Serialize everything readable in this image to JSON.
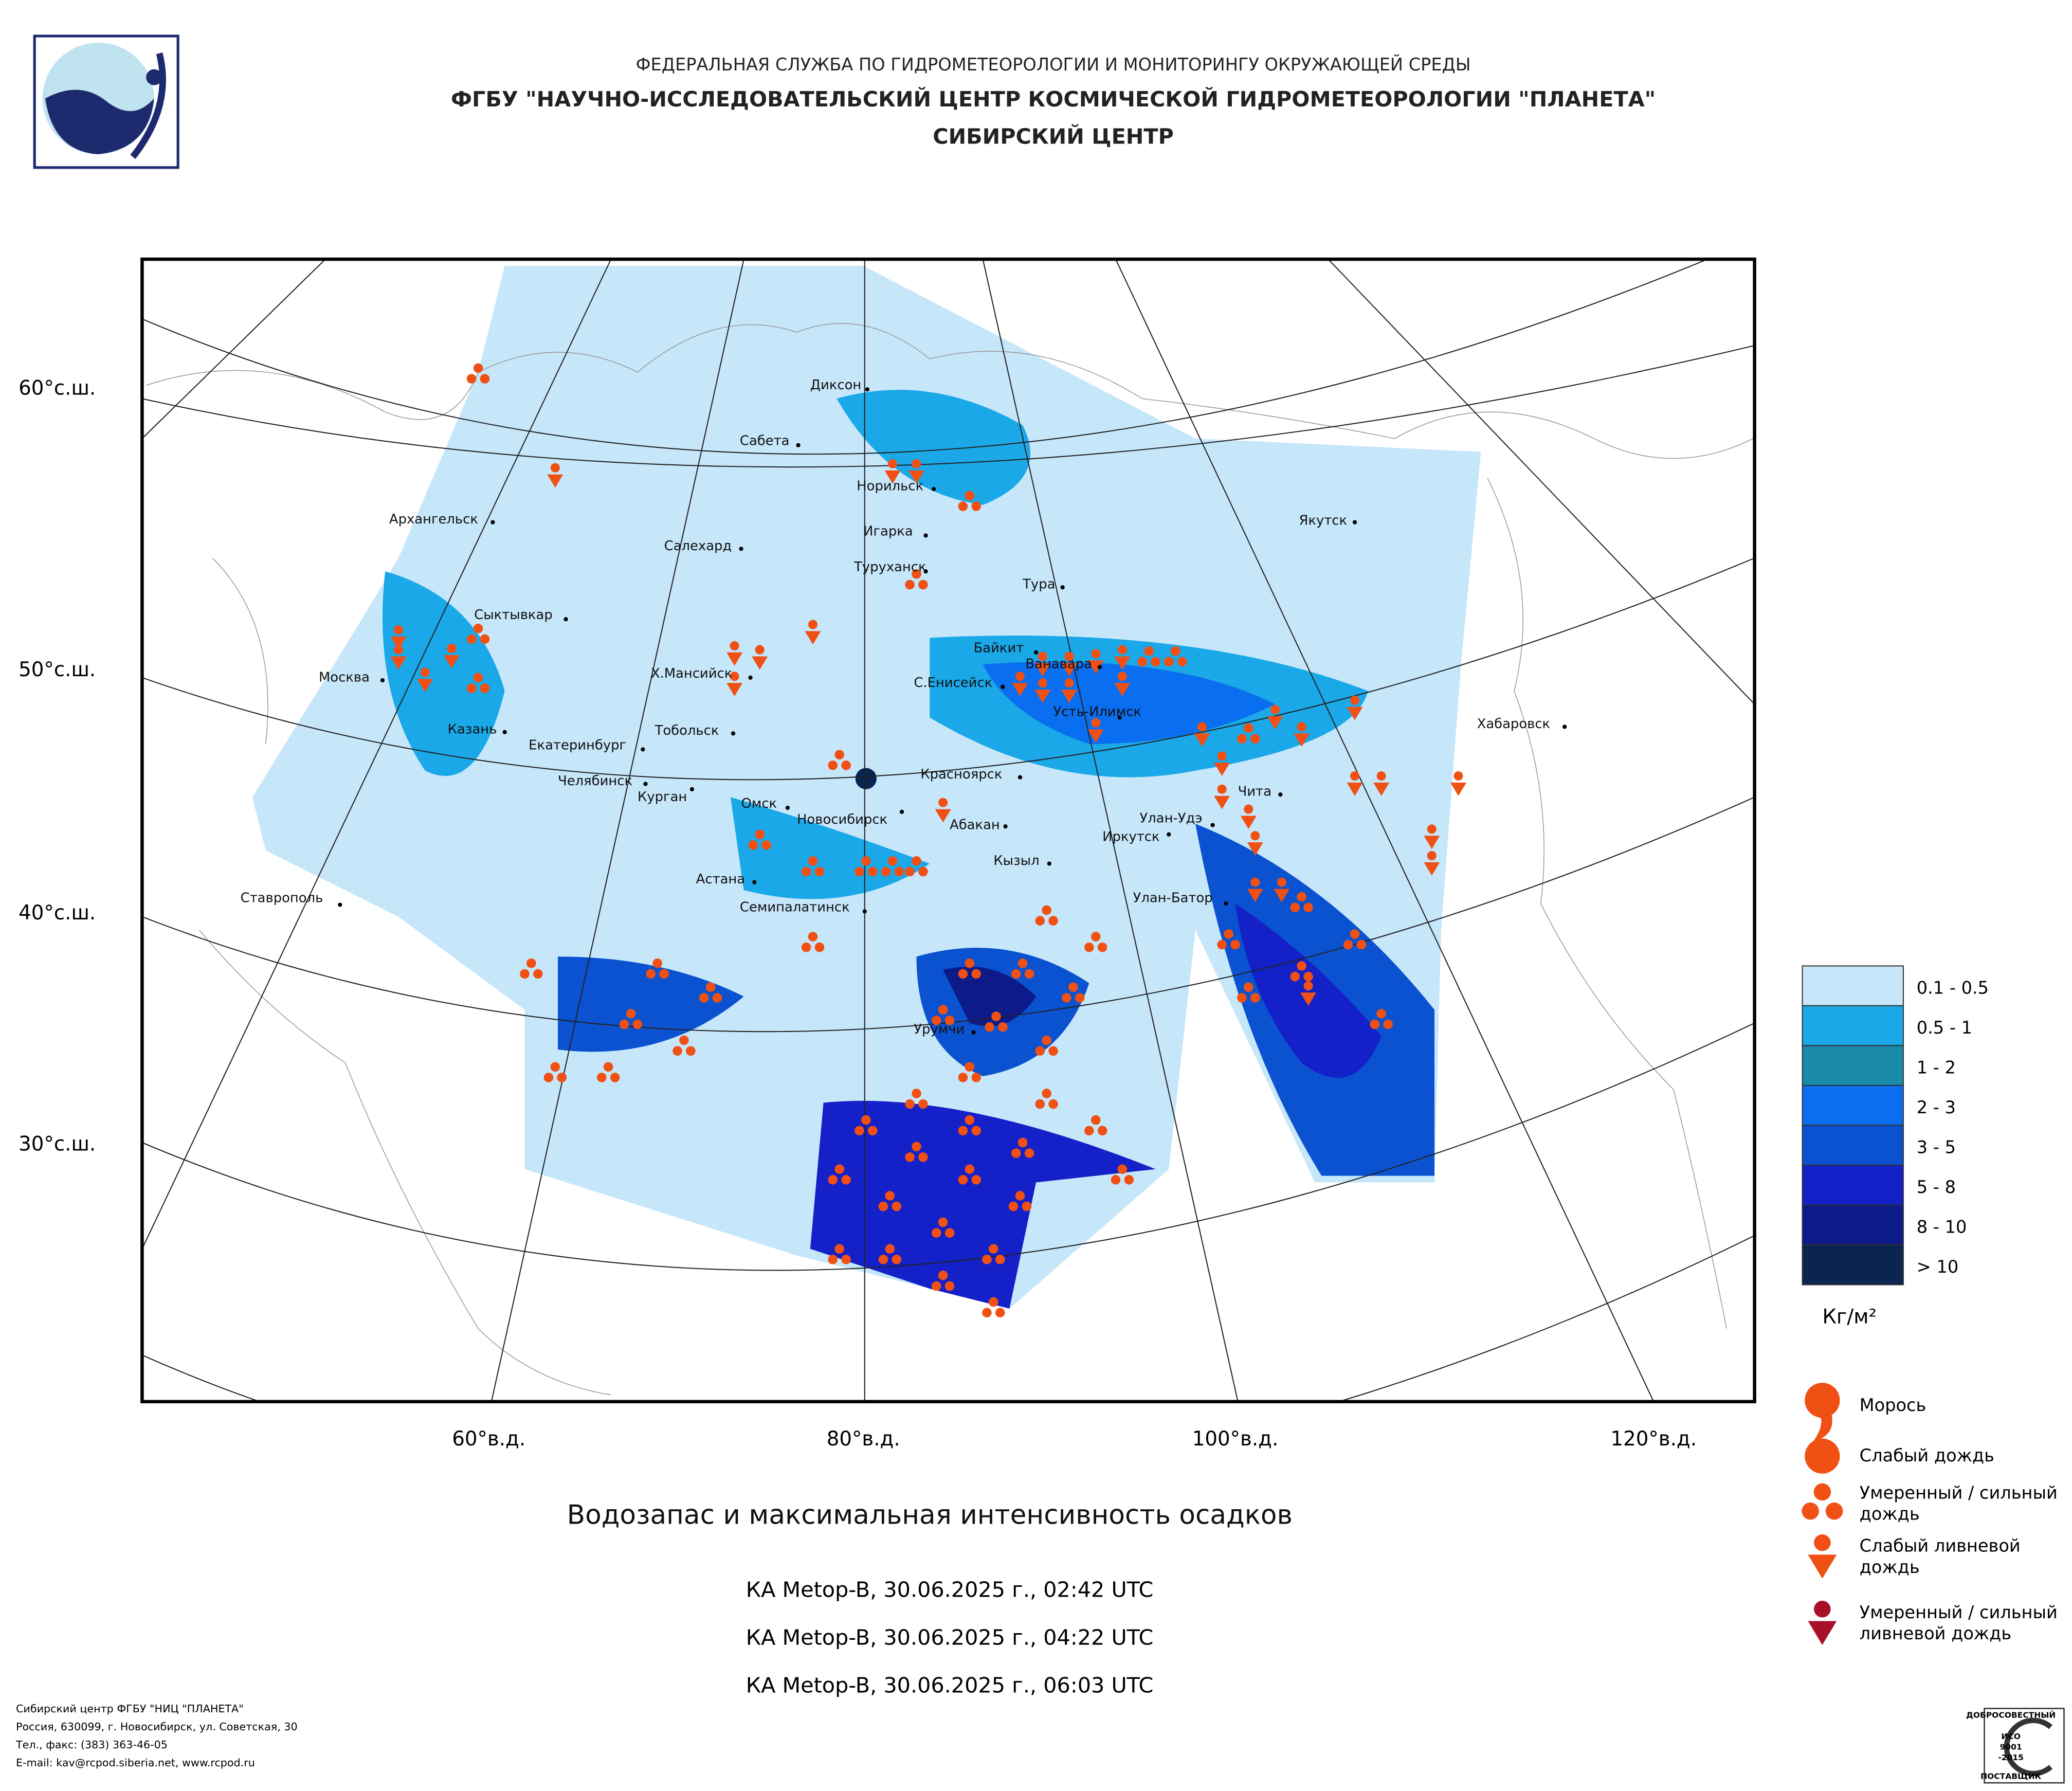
{
  "header": {
    "lines": [
      "ФЕДЕРАЛЬНАЯ СЛУЖБА ПО ГИДРОМЕТЕОРОЛОГИИ И МОНИТОРИНГУ ОКРУЖАЮЩЕЙ СРЕДЫ",
      "ФГБУ \"НАУЧНО-ИССЛЕДОВАТЕЛЬСКИЙ ЦЕНТР КОСМИЧЕСКОЙ ГИДРОМЕТЕОРОЛОГИИ \"ПЛАНЕТА\"",
      "СИБИРСКИЙ ЦЕНТР"
    ]
  },
  "map": {
    "lat_labels": [
      "60°с.ш.",
      "50°с.ш.",
      "40°с.ш.",
      "30°с.ш."
    ],
    "lon_labels": [
      "60°в.д.",
      "80°в.д.",
      "100°в.д.",
      "120°в.д."
    ],
    "cities": [
      "Диксон",
      "Сабета",
      "Норильск",
      "Архангельск",
      "Якутск",
      "Салехард",
      "Игарка",
      "Туруханск",
      "Тура",
      "Сыктывкар",
      "Байкит",
      "Ванавара",
      "Москва",
      "Х.Мансийск",
      "С.Енисейск",
      "Усть-Илимск",
      "Хабаровск",
      "Казань",
      "Тобольск",
      "Екатеринбург",
      "Красноярск",
      "Челябинск",
      "Чита",
      "Курган",
      "Омск",
      "Новосибирск",
      "Абакан",
      "Улан-Удэ",
      "Иркутск",
      "Кызыл",
      "Астана",
      "Ставрополь",
      "Семипалатинск",
      "Улан-Батор",
      "Урумчи"
    ]
  },
  "legend": {
    "water": [
      "0.1 - 0.5",
      "0.5 - 1",
      "1 - 2",
      "2 - 3",
      "3 - 5",
      "5 - 8",
      "8 - 10",
      "> 10"
    ],
    "unit": "Кг/м²",
    "precip": [
      [
        "Морось"
      ],
      [
        "Слабый дождь"
      ],
      [
        "Умеренный / сильный",
        "дождь"
      ],
      [
        "Слабый ливневой",
        "дождь"
      ],
      [
        "Умеренный / сильный",
        "ливневой дождь"
      ]
    ]
  },
  "title": "Водозапас и максимальная интенсивность осадков",
  "passes": [
    "КА Metop-B, 30.06.2025 г., 02:42 UTC",
    "КА Metop-B, 30.06.2025 г., 04:22 UTC",
    "КА Metop-B, 30.06.2025 г., 06:03 UTC"
  ],
  "footer": [
    "Сибирский центр ФГБУ \"НИЦ \"ПЛАНЕТА\"",
    "Россия, 630099, г. Новосибирск, ул. Советская, 30",
    "Тел., факс: (383) 363-46-05",
    "E-mail: kav@rcpod.siberia.net, www.rcpod.ru"
  ],
  "badge": [
    "ДОБРОСОВЕСТНЫЙ",
    "ИСО",
    "9001",
    "-2015",
    "ПОСТАВЩИК"
  ]
}
